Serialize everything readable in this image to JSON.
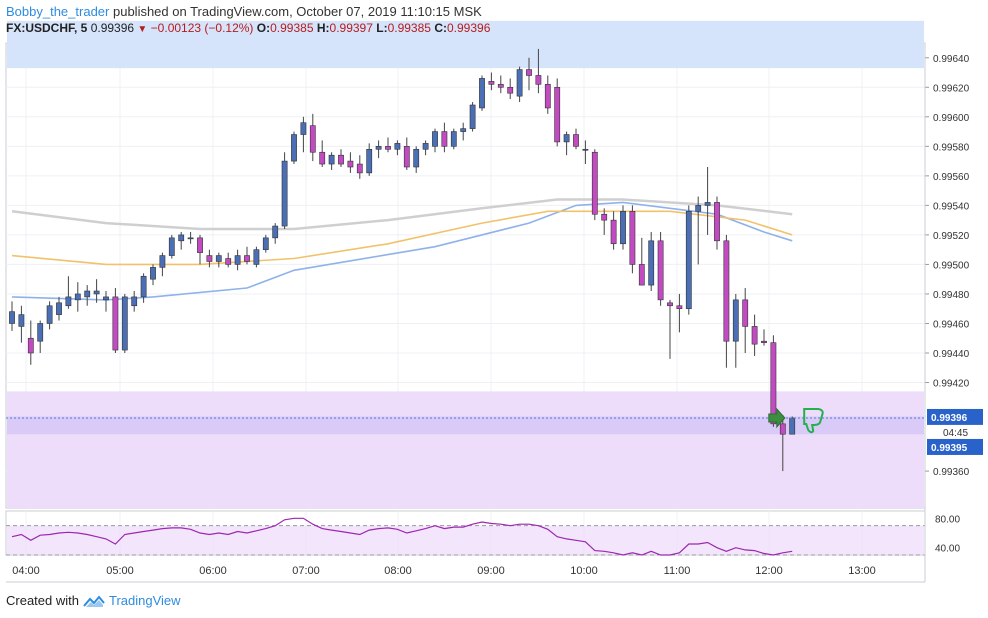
{
  "header": {
    "author": "Bobby_the_trader",
    "published_text": "published on TradingView.com, October 07, 2019 11:10:15 MSK",
    "symbol": "FX:USDCHF, 5",
    "last": "0.99396",
    "change": "−0.00123 (−0.12%)",
    "o_label": "O:",
    "o_value": "0.99385",
    "h_label": "H:",
    "h_value": "0.99397",
    "l_label": "L:",
    "l_value": "0.99385",
    "c_label": "C:",
    "c_value": "0.99396"
  },
  "footer": {
    "created_with": "Created with",
    "brand": "TradingView"
  },
  "colors": {
    "bull": "#4a6fb5",
    "bear": "#c24bc2",
    "ma_fast": "#8fb2ea",
    "ma_mid": "#f2c26a",
    "ma_slow": "#cfcfcf",
    "rsi": "#9c27b0",
    "zone_blue": "#d6e4fb",
    "zone_purple": "#eedcfb",
    "zone_purple_band": "#d7c8f6",
    "price_line": "#4e7ed6",
    "grid": "#eef0f4"
  },
  "icons": [
    "arrow-right-icon",
    "thumbs-down-icon",
    "tradingview-logo-icon"
  ],
  "price_labels": {
    "current": "0.99396",
    "countdown": "04:45",
    "second": "0.99395"
  },
  "chart_data": {
    "type": "candlestick",
    "price_axis": {
      "range": [
        0.99335,
        0.9965
      ],
      "ticks": [
        "0.99640",
        "0.99620",
        "0.99600",
        "0.99580",
        "0.99560",
        "0.99540",
        "0.99520",
        "0.99500",
        "0.99480",
        "0.99460",
        "0.99440",
        "0.99420",
        "0.99360"
      ]
    },
    "rsi_axis": {
      "range": [
        30,
        90
      ],
      "ticks": [
        "80.00",
        "40.00"
      ],
      "levels": [
        70,
        30
      ]
    },
    "time_axis": {
      "ticks": [
        "04:00",
        "05:00",
        "06:00",
        "07:00",
        "08:00",
        "09:00",
        "10:00",
        "11:00",
        "12:00",
        "13:00"
      ]
    },
    "zones": [
      {
        "name": "resistance",
        "from": 0.99633,
        "to": 0.99665
      },
      {
        "name": "support",
        "from": 0.99335,
        "to": 0.99414
      }
    ],
    "current_price": 0.99396,
    "candles": [
      [
        0.9946,
        0.99475,
        0.99455,
        0.99468
      ],
      [
        0.99458,
        0.99472,
        0.99447,
        0.99466
      ],
      [
        0.9945,
        0.99462,
        0.99432,
        0.9944
      ],
      [
        0.99448,
        0.99462,
        0.9944,
        0.9946
      ],
      [
        0.9946,
        0.99475,
        0.99456,
        0.99472
      ],
      [
        0.99466,
        0.99478,
        0.99462,
        0.99474
      ],
      [
        0.99472,
        0.99492,
        0.9947,
        0.99478
      ],
      [
        0.99476,
        0.99488,
        0.99468,
        0.9948
      ],
      [
        0.99478,
        0.99486,
        0.99472,
        0.99482
      ],
      [
        0.9948,
        0.9949,
        0.99474,
        0.99482
      ],
      [
        0.99476,
        0.99482,
        0.99468,
        0.99478
      ],
      [
        0.99478,
        0.99484,
        0.9944,
        0.99442
      ],
      [
        0.99442,
        0.9948,
        0.9944,
        0.99478
      ],
      [
        0.99472,
        0.99482,
        0.99468,
        0.99478
      ],
      [
        0.99478,
        0.99494,
        0.99474,
        0.99492
      ],
      [
        0.9949,
        0.995,
        0.99486,
        0.99498
      ],
      [
        0.99498,
        0.99508,
        0.99492,
        0.99506
      ],
      [
        0.99506,
        0.9952,
        0.99504,
        0.99518
      ],
      [
        0.99516,
        0.99522,
        0.9951,
        0.9952
      ],
      [
        0.99518,
        0.99522,
        0.99514,
        0.99518
      ],
      [
        0.99518,
        0.9952,
        0.995,
        0.99508
      ],
      [
        0.99506,
        0.9951,
        0.99498,
        0.99502
      ],
      [
        0.99502,
        0.99508,
        0.99498,
        0.99506
      ],
      [
        0.99504,
        0.99508,
        0.99498,
        0.995
      ],
      [
        0.995,
        0.9951,
        0.99496,
        0.99506
      ],
      [
        0.99506,
        0.99512,
        0.995,
        0.99502
      ],
      [
        0.995,
        0.99512,
        0.99498,
        0.9951
      ],
      [
        0.9951,
        0.9952,
        0.99508,
        0.99518
      ],
      [
        0.99518,
        0.99528,
        0.99514,
        0.99526
      ],
      [
        0.99526,
        0.99576,
        0.99524,
        0.9957
      ],
      [
        0.9957,
        0.9959,
        0.99568,
        0.99588
      ],
      [
        0.99588,
        0.996,
        0.99576,
        0.99596
      ],
      [
        0.99594,
        0.99602,
        0.9957,
        0.99576
      ],
      [
        0.99576,
        0.99584,
        0.99566,
        0.99568
      ],
      [
        0.99568,
        0.99576,
        0.99564,
        0.99574
      ],
      [
        0.99574,
        0.99578,
        0.99566,
        0.99568
      ],
      [
        0.9957,
        0.99576,
        0.99562,
        0.99566
      ],
      [
        0.99568,
        0.99574,
        0.99558,
        0.99562
      ],
      [
        0.99562,
        0.99582,
        0.9956,
        0.99578
      ],
      [
        0.99578,
        0.99584,
        0.99572,
        0.9958
      ],
      [
        0.9958,
        0.99586,
        0.99576,
        0.99578
      ],
      [
        0.99578,
        0.99584,
        0.99574,
        0.99582
      ],
      [
        0.9958,
        0.99586,
        0.99564,
        0.99566
      ],
      [
        0.99566,
        0.9958,
        0.99562,
        0.99578
      ],
      [
        0.99578,
        0.99584,
        0.99574,
        0.99582
      ],
      [
        0.9958,
        0.99592,
        0.99576,
        0.9959
      ],
      [
        0.9959,
        0.99596,
        0.99576,
        0.9958
      ],
      [
        0.9958,
        0.99592,
        0.99578,
        0.9959
      ],
      [
        0.9959,
        0.99596,
        0.99584,
        0.99592
      ],
      [
        0.99592,
        0.9961,
        0.9959,
        0.99608
      ],
      [
        0.99606,
        0.99628,
        0.99604,
        0.99626
      ],
      [
        0.99624,
        0.9963,
        0.99618,
        0.99622
      ],
      [
        0.99622,
        0.99628,
        0.99616,
        0.9962
      ],
      [
        0.9962,
        0.99626,
        0.99612,
        0.99616
      ],
      [
        0.99614,
        0.99634,
        0.9961,
        0.99632
      ],
      [
        0.99632,
        0.9964,
        0.99618,
        0.99628
      ],
      [
        0.99628,
        0.99646,
        0.99616,
        0.99622
      ],
      [
        0.99622,
        0.99628,
        0.99602,
        0.99606
      ],
      [
        0.9962,
        0.99626,
        0.9958,
        0.99583
      ],
      [
        0.99583,
        0.9959,
        0.99574,
        0.99588
      ],
      [
        0.99588,
        0.99592,
        0.99578,
        0.9958
      ],
      [
        0.99578,
        0.99584,
        0.99568,
        0.99578
      ],
      [
        0.99576,
        0.99578,
        0.9953,
        0.99534
      ],
      [
        0.99534,
        0.99538,
        0.9952,
        0.9953
      ],
      [
        0.9953,
        0.99536,
        0.9951,
        0.99514
      ],
      [
        0.99514,
        0.9954,
        0.9951,
        0.99536
      ],
      [
        0.99536,
        0.9954,
        0.99494,
        0.995
      ],
      [
        0.995,
        0.99518,
        0.99486,
        0.99486
      ],
      [
        0.99486,
        0.99522,
        0.99482,
        0.99516
      ],
      [
        0.99516,
        0.99522,
        0.99472,
        0.99476
      ],
      [
        0.99474,
        0.99476,
        0.99436,
        0.99472
      ],
      [
        0.99472,
        0.9948,
        0.99454,
        0.9947
      ],
      [
        0.9947,
        0.9954,
        0.99466,
        0.99536
      ],
      [
        0.99536,
        0.99546,
        0.995,
        0.9954
      ],
      [
        0.9954,
        0.99566,
        0.9952,
        0.99542
      ],
      [
        0.99542,
        0.99546,
        0.9951,
        0.99516
      ],
      [
        0.99516,
        0.9952,
        0.9943,
        0.99448
      ],
      [
        0.99448,
        0.9948,
        0.9943,
        0.99476
      ],
      [
        0.99476,
        0.99484,
        0.9944,
        0.99458
      ],
      [
        0.99458,
        0.99466,
        0.99438,
        0.99446
      ],
      [
        0.99448,
        0.99456,
        0.99445,
        0.99447
      ],
      [
        0.99447,
        0.99452,
        0.9939,
        0.99392
      ],
      [
        0.99392,
        0.99398,
        0.9936,
        0.99385
      ],
      [
        0.99385,
        0.99397,
        0.99385,
        0.99396
      ]
    ],
    "moving_averages": [
      {
        "name": "fast",
        "points": [
          [
            0,
            0.99478
          ],
          [
            10,
            0.99476
          ],
          [
            15,
            0.99478
          ],
          [
            25,
            0.99484
          ],
          [
            30,
            0.99496
          ],
          [
            45,
            0.99512
          ],
          [
            55,
            0.99528
          ],
          [
            60,
            0.9954
          ],
          [
            65,
            0.99542
          ],
          [
            70,
            0.99538
          ],
          [
            75,
            0.99534
          ],
          [
            80,
            0.99522
          ],
          [
            83,
            0.99516
          ]
        ]
      },
      {
        "name": "mid",
        "points": [
          [
            0,
            0.99506
          ],
          [
            10,
            0.995
          ],
          [
            20,
            0.995
          ],
          [
            30,
            0.99504
          ],
          [
            40,
            0.99514
          ],
          [
            50,
            0.99528
          ],
          [
            57,
            0.99536
          ],
          [
            62,
            0.99536
          ],
          [
            70,
            0.99536
          ],
          [
            78,
            0.9953
          ],
          [
            83,
            0.9952
          ]
        ]
      },
      {
        "name": "slow",
        "points": [
          [
            0,
            0.99536
          ],
          [
            10,
            0.99528
          ],
          [
            20,
            0.99524
          ],
          [
            30,
            0.99524
          ],
          [
            40,
            0.9953
          ],
          [
            50,
            0.99538
          ],
          [
            58,
            0.99544
          ],
          [
            65,
            0.99544
          ],
          [
            75,
            0.9954
          ],
          [
            83,
            0.99534
          ]
        ]
      }
    ],
    "rsi": [
      55,
      58,
      50,
      57,
      58,
      60,
      61,
      60,
      58,
      55,
      52,
      45,
      58,
      60,
      62,
      64,
      66,
      67,
      67,
      65,
      60,
      58,
      60,
      58,
      62,
      60,
      63,
      66,
      70,
      78,
      80,
      80,
      72,
      66,
      64,
      62,
      60,
      58,
      64,
      66,
      67,
      65,
      60,
      63,
      66,
      70,
      66,
      68,
      68,
      72,
      75,
      73,
      72,
      70,
      72,
      72,
      70,
      65,
      55,
      52,
      50,
      48,
      36,
      35,
      33,
      30,
      33,
      30,
      35,
      30,
      30,
      33,
      45,
      45,
      47,
      40,
      35,
      40,
      37,
      36,
      32,
      30,
      33,
      35
    ]
  }
}
